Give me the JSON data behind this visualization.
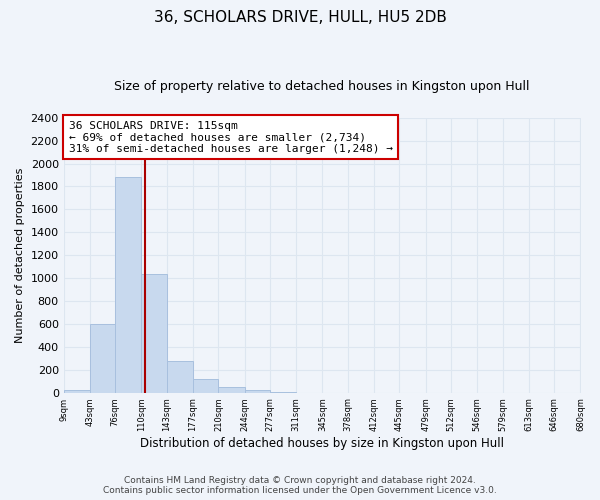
{
  "title": "36, SCHOLARS DRIVE, HULL, HU5 2DB",
  "subtitle": "Size of property relative to detached houses in Kingston upon Hull",
  "xlabel": "Distribution of detached houses by size in Kingston upon Hull",
  "ylabel": "Number of detached properties",
  "bar_edges": [
    9,
    43,
    76,
    110,
    143,
    177,
    210,
    244,
    277,
    311,
    345,
    378,
    412,
    445,
    479,
    512,
    546,
    579,
    613,
    646,
    680
  ],
  "bar_heights": [
    20,
    600,
    1880,
    1040,
    280,
    115,
    45,
    20,
    5,
    0,
    0,
    0,
    0,
    0,
    0,
    0,
    0,
    0,
    0,
    0
  ],
  "bar_color": "#c8d9ee",
  "bar_edgecolor": "#a8c0de",
  "property_line_x": 115,
  "annotation_text": "36 SCHOLARS DRIVE: 115sqm\n← 69% of detached houses are smaller (2,734)\n31% of semi-detached houses are larger (1,248) →",
  "annotation_box_color": "#ffffff",
  "annotation_box_edgecolor": "#cc0000",
  "vline_color": "#aa0000",
  "ylim": [
    0,
    2400
  ],
  "yticks": [
    0,
    200,
    400,
    600,
    800,
    1000,
    1200,
    1400,
    1600,
    1800,
    2000,
    2200,
    2400
  ],
  "tick_labels": [
    "9sqm",
    "43sqm",
    "76sqm",
    "110sqm",
    "143sqm",
    "177sqm",
    "210sqm",
    "244sqm",
    "277sqm",
    "311sqm",
    "345sqm",
    "378sqm",
    "412sqm",
    "445sqm",
    "479sqm",
    "512sqm",
    "546sqm",
    "579sqm",
    "613sqm",
    "646sqm",
    "680sqm"
  ],
  "footer_line1": "Contains HM Land Registry data © Crown copyright and database right 2024.",
  "footer_line2": "Contains public sector information licensed under the Open Government Licence v3.0.",
  "background_color": "#f0f4fa",
  "grid_color": "#dde6f0",
  "title_fontsize": 11,
  "subtitle_fontsize": 9,
  "xlabel_fontsize": 8.5,
  "ylabel_fontsize": 8,
  "annotation_fontsize": 8,
  "footer_fontsize": 6.5
}
